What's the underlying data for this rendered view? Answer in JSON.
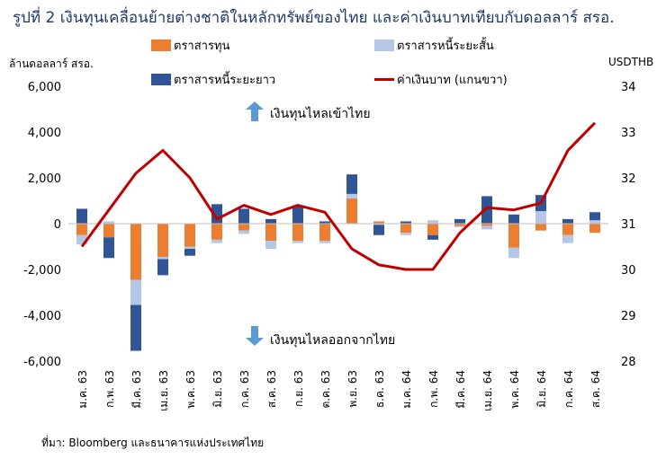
{
  "title": "รูปที่ 2 เงินทุนเคลื่อนย้ายต่างชาติในหลักทรัพย์ของไทย  และค่าเงินบาทเทียบกับดอลลาร์ สรอ.",
  "source": "ที่มา: Bloomberg และธนาคารแห่งประเทศไทย",
  "chart_data": {
    "type": "bar",
    "stacked": true,
    "left_axis_label": "ล้านดอลลาร์ สรอ.",
    "right_axis_label": "USDTHB",
    "ylim_left": [
      -6000,
      6000
    ],
    "yticks_left": [
      "6,000",
      "4,000",
      "2,000",
      "0",
      "-2,000",
      "-4,000",
      "-6,000"
    ],
    "ylim_right": [
      28,
      34
    ],
    "yticks_right": [
      "34",
      "33",
      "32",
      "31",
      "30",
      "29",
      "28"
    ],
    "categories": [
      "ม.ค. 63",
      "ก.พ. 63",
      "มี.ค. 63",
      "เม.ย. 63",
      "พ.ค. 63",
      "มิ.ย. 63",
      "ก.ค. 63",
      "ส.ค. 63",
      "ก.ย. 63",
      "ต.ค. 63",
      "พ.ย. 63",
      "ธ.ค. 63",
      "ม.ค. 64",
      "ก.พ. 64",
      "มี.ค. 64",
      "เม.ย. 64",
      "พ.ค. 64",
      "มิ.ย. 64",
      "ก.ค. 64",
      "ส.ค. 64"
    ],
    "series": [
      {
        "name": "ตราสารทุน",
        "color": "#ed7d31",
        "axis": "left",
        "values": [
          -500,
          -600,
          -2450,
          -1450,
          -1000,
          -700,
          -300,
          -750,
          -750,
          -750,
          1100,
          100,
          -400,
          -500,
          -100,
          -100,
          -1050,
          -300,
          -500,
          -400
        ]
      },
      {
        "name": "ตราสารหนี้ระยะสั้น",
        "color": "#b4c7e7",
        "axis": "left",
        "values": [
          -400,
          100,
          -1100,
          -100,
          -100,
          -150,
          -150,
          -350,
          -100,
          -100,
          200,
          -50,
          -100,
          150,
          -50,
          -150,
          -450,
          550,
          -350,
          150
        ]
      },
      {
        "name": "ตราสารหนี้ระยะยาว",
        "color": "#2f5597",
        "axis": "left",
        "values": [
          650,
          -900,
          -2000,
          -700,
          -300,
          850,
          650,
          200,
          800,
          100,
          850,
          -450,
          100,
          -200,
          200,
          1200,
          400,
          700,
          200,
          350
        ]
      },
      {
        "name": "ค่าเงินบาท (แกนขวา)",
        "color": "#c00000",
        "axis": "right",
        "type": "line",
        "values": [
          30.5,
          31.3,
          32.1,
          32.6,
          32.0,
          31.1,
          31.4,
          31.2,
          31.4,
          31.25,
          30.45,
          30.1,
          30.0,
          30.0,
          30.8,
          31.35,
          31.3,
          31.45,
          32.6,
          33.2
        ]
      }
    ],
    "annotations": [
      {
        "text": "เงินทุนไหลเข้าไทย",
        "direction": "up"
      },
      {
        "text": "เงินทุนไหลออกจากไทย",
        "direction": "down"
      }
    ]
  }
}
